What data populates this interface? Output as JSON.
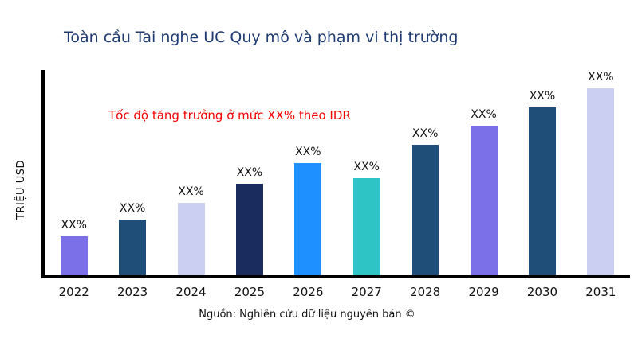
{
  "header": {
    "title": "Toàn cầu Tai nghe UC Quy mô và phạm vi thị trường"
  },
  "annotation": {
    "text": "Tốc độ tăng trưởng ở mức XX% theo IDR",
    "color": "#f50000"
  },
  "footer": {
    "source": "Nguồn: Nghiên cứu dữ liệu nguyên bản ©"
  },
  "chart_data": {
    "type": "bar",
    "title": "Toàn cầu Tai nghe UC Quy mô và phạm vi thị trường",
    "xlabel": "",
    "ylabel": "TRIỆU USD",
    "categories": [
      "2022",
      "2023",
      "2024",
      "2025",
      "2026",
      "2027",
      "2028",
      "2029",
      "2030",
      "2031"
    ],
    "values": [
      21,
      30,
      39,
      49,
      60,
      52,
      70,
      80,
      90,
      100
    ],
    "data_label": "XX%",
    "ylim": [
      0,
      110
    ],
    "grid": false,
    "legend": "none",
    "bar_colors": [
      "#7b70e8",
      "#1f4e79",
      "#cbd0f2",
      "#1a2b5e",
      "#1e90ff",
      "#2ec4c6",
      "#1f4e79",
      "#7b70e8",
      "#1f4e79",
      "#cbd0f2"
    ],
    "axis_color": "#000000",
    "title_color": "#1f3b73"
  }
}
